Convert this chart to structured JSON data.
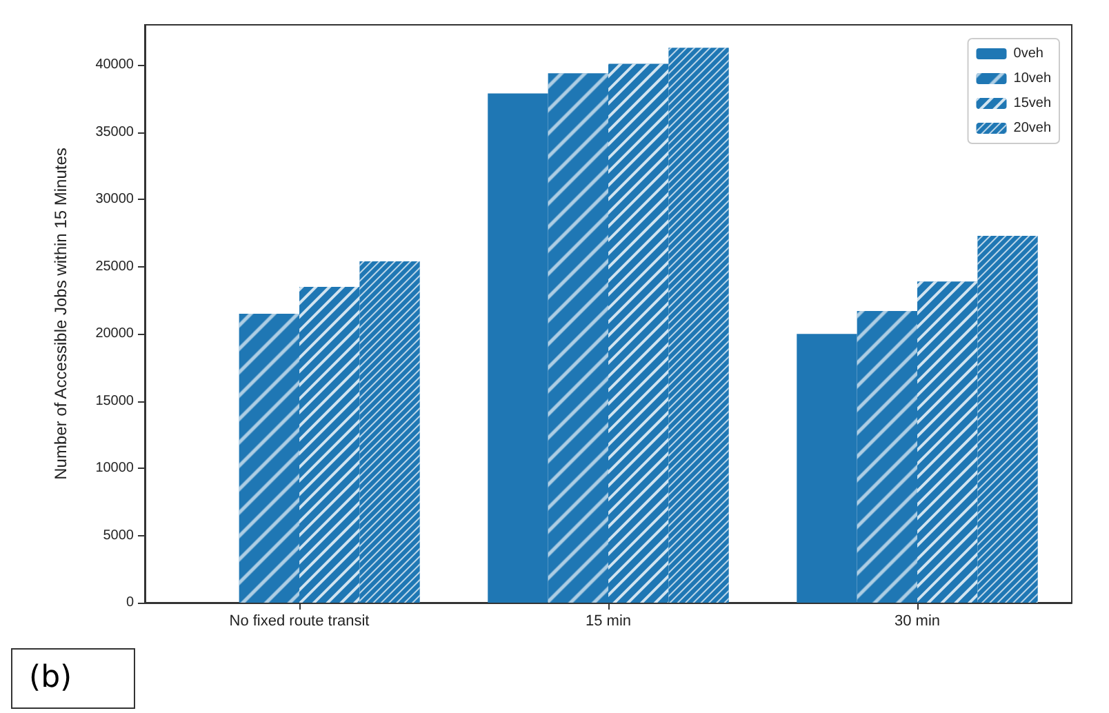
{
  "chart_data": {
    "type": "bar",
    "ylabel": "Number of Accessible Jobs within 15 Minutes",
    "categories": [
      "No fixed route transit",
      "15 min",
      "30 min"
    ],
    "series": [
      {
        "name": "0veh",
        "color": "#1f77b4",
        "values": [
          null,
          37900,
          20000
        ]
      },
      {
        "name": "10veh",
        "color": "#1f77b4",
        "values": [
          21500,
          39400,
          21700
        ]
      },
      {
        "name": "15veh",
        "color": "#1f77b4",
        "values": [
          23500,
          40100,
          23900
        ]
      },
      {
        "name": "20veh",
        "color": "#1f77b4",
        "values": [
          25400,
          41300,
          27300
        ]
      }
    ],
    "ylim": [
      0,
      43000
    ],
    "yticks": [
      0,
      5000,
      10000,
      15000,
      20000,
      25000,
      30000,
      35000,
      40000
    ],
    "grid": false,
    "legend": "top right",
    "annotations": [
      "(b)"
    ]
  }
}
